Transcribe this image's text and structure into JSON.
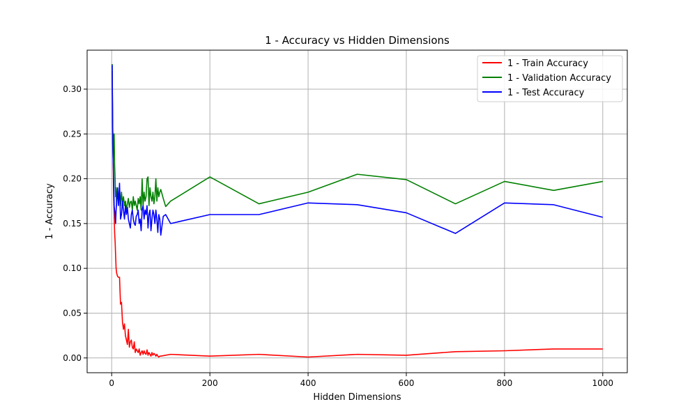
{
  "chart_data": {
    "type": "line",
    "title": "1 - Accuracy vs Hidden Dimensions",
    "xlabel": "Hidden Dimensions",
    "ylabel": "1 - Accuracy",
    "xlim": [
      -50,
      1050
    ],
    "ylim": [
      -0.0165,
      0.3435
    ],
    "xticks": [
      0,
      200,
      400,
      600,
      800,
      1000
    ],
    "yticks": [
      0.0,
      0.05,
      0.1,
      0.15,
      0.2,
      0.25,
      0.3
    ],
    "ytick_labels": [
      "0.00",
      "0.05",
      "0.10",
      "0.15",
      "0.20",
      "0.25",
      "0.30"
    ],
    "grid": true,
    "legend_position": "top-right",
    "series": [
      {
        "name": "1 - Train Accuracy",
        "color": "#ff0000",
        "x": [
          1,
          2,
          3,
          4,
          5,
          6,
          7,
          8,
          9,
          10,
          12,
          14,
          16,
          18,
          20,
          22,
          24,
          26,
          28,
          30,
          32,
          34,
          36,
          38,
          40,
          42,
          44,
          46,
          48,
          50,
          52,
          54,
          56,
          58,
          60,
          62,
          64,
          66,
          68,
          70,
          72,
          74,
          76,
          78,
          80,
          82,
          84,
          86,
          88,
          90,
          92,
          94,
          96,
          98,
          100,
          120,
          200,
          300,
          400,
          500,
          600,
          700,
          800,
          900,
          1000
        ],
        "y": [
          0.32,
          0.26,
          0.22,
          0.18,
          0.16,
          0.14,
          0.13,
          0.115,
          0.1,
          0.095,
          0.091,
          0.09,
          0.09,
          0.06,
          0.062,
          0.04,
          0.032,
          0.038,
          0.025,
          0.02,
          0.015,
          0.032,
          0.012,
          0.018,
          0.02,
          0.012,
          0.01,
          0.018,
          0.006,
          0.01,
          0.008,
          0.006,
          0.01,
          0.003,
          0.006,
          0.008,
          0.004,
          0.008,
          0.005,
          0.004,
          0.009,
          0.003,
          0.006,
          0.004,
          0.002,
          0.006,
          0.003,
          0.005,
          0.004,
          0.002,
          0.004,
          0.002,
          0.001,
          0.002,
          0.002,
          0.004,
          0.002,
          0.004,
          0.001,
          0.004,
          0.003,
          0.007,
          0.008,
          0.01,
          0.01
        ]
      },
      {
        "name": "1 - Validation Accuracy",
        "color": "#008000",
        "x": [
          1,
          2,
          3,
          4,
          5,
          6,
          7,
          8,
          9,
          10,
          12,
          14,
          16,
          18,
          20,
          22,
          24,
          26,
          28,
          30,
          32,
          34,
          36,
          38,
          40,
          42,
          44,
          46,
          48,
          50,
          52,
          54,
          56,
          58,
          60,
          62,
          64,
          66,
          68,
          70,
          72,
          74,
          76,
          78,
          80,
          82,
          84,
          86,
          88,
          90,
          92,
          94,
          96,
          98,
          100,
          105,
          110,
          120,
          200,
          300,
          400,
          500,
          600,
          700,
          800,
          900,
          1000
        ],
        "y": [
          0.328,
          0.24,
          0.22,
          0.25,
          0.25,
          0.215,
          0.2,
          0.18,
          0.19,
          0.17,
          0.185,
          0.175,
          0.19,
          0.17,
          0.185,
          0.172,
          0.18,
          0.17,
          0.175,
          0.165,
          0.172,
          0.178,
          0.168,
          0.174,
          0.175,
          0.165,
          0.18,
          0.17,
          0.175,
          0.17,
          0.165,
          0.178,
          0.172,
          0.18,
          0.165,
          0.2,
          0.17,
          0.185,
          0.175,
          0.18,
          0.2,
          0.202,
          0.17,
          0.19,
          0.18,
          0.175,
          0.185,
          0.172,
          0.18,
          0.2,
          0.175,
          0.19,
          0.18,
          0.185,
          0.188,
          0.178,
          0.169,
          0.175,
          0.202,
          0.172,
          0.185,
          0.205,
          0.199,
          0.172,
          0.197,
          0.187,
          0.197
        ]
      },
      {
        "name": "1 - Test Accuracy",
        "color": "#0000ff",
        "x": [
          1,
          2,
          3,
          4,
          5,
          6,
          7,
          8,
          9,
          10,
          12,
          14,
          16,
          18,
          20,
          22,
          24,
          26,
          28,
          30,
          32,
          34,
          36,
          38,
          40,
          42,
          44,
          46,
          48,
          50,
          52,
          54,
          56,
          58,
          60,
          62,
          64,
          66,
          68,
          70,
          72,
          74,
          76,
          78,
          80,
          82,
          84,
          86,
          88,
          90,
          92,
          94,
          96,
          98,
          100,
          105,
          110,
          120,
          200,
          300,
          400,
          500,
          600,
          700,
          800,
          900,
          1000
        ],
        "y": [
          0.327,
          0.26,
          0.22,
          0.2,
          0.17,
          0.165,
          0.16,
          0.15,
          0.165,
          0.172,
          0.19,
          0.17,
          0.195,
          0.155,
          0.16,
          0.175,
          0.165,
          0.155,
          0.17,
          0.16,
          0.168,
          0.155,
          0.15,
          0.145,
          0.16,
          0.165,
          0.155,
          0.15,
          0.148,
          0.158,
          0.16,
          0.165,
          0.15,
          0.155,
          0.142,
          0.165,
          0.17,
          0.155,
          0.165,
          0.16,
          0.17,
          0.145,
          0.16,
          0.165,
          0.142,
          0.155,
          0.165,
          0.16,
          0.15,
          0.165,
          0.155,
          0.14,
          0.16,
          0.155,
          0.137,
          0.158,
          0.16,
          0.15,
          0.16,
          0.16,
          0.173,
          0.171,
          0.162,
          0.139,
          0.173,
          0.171,
          0.157
        ]
      }
    ]
  }
}
